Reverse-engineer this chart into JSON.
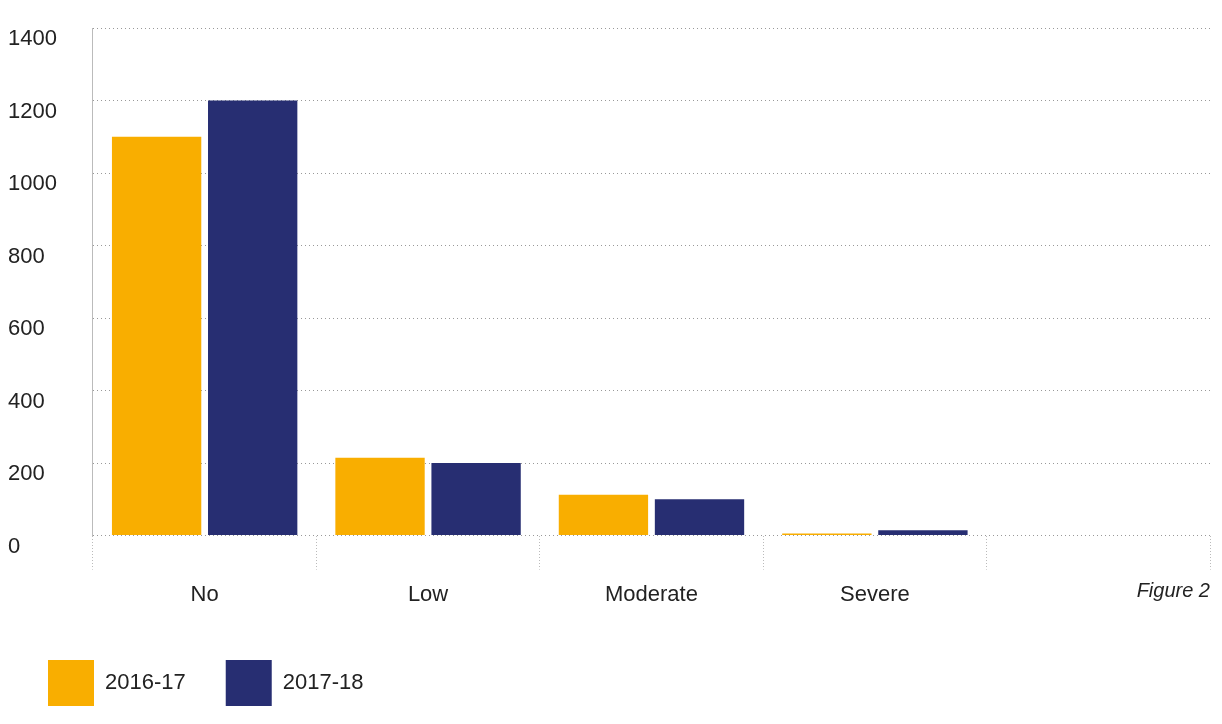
{
  "chart_data": {
    "type": "bar",
    "categories": [
      "No",
      "Low",
      "Moderate",
      "Severe",
      null
    ],
    "series": [
      {
        "name": "2016-17",
        "color": "#f9ae00",
        "values": [
          1100,
          215,
          113,
          2,
          null
        ]
      },
      {
        "name": "2017-18",
        "color": "#272e72",
        "values": [
          1200,
          200,
          100,
          15,
          null
        ]
      }
    ],
    "ylim": [
      0,
      1400
    ],
    "yticks": [
      0,
      200,
      400,
      600,
      800,
      1000,
      1200,
      1400
    ],
    "grid": "y",
    "legend": "bottom left",
    "annotations": [
      "Figure 2"
    ]
  }
}
